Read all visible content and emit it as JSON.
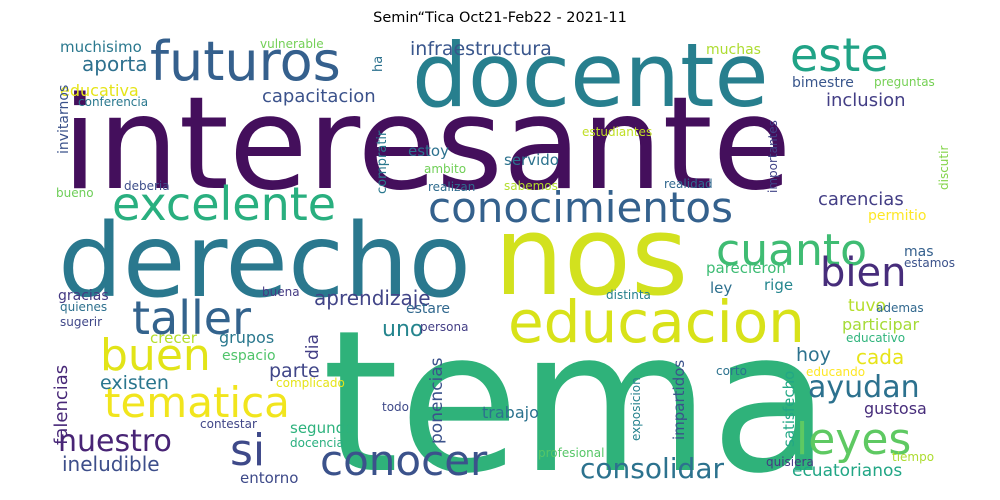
{
  "title": "Semin“Tica Oct21-Feb22 - 2021-11",
  "words": [
    {
      "text": "interesante",
      "color": "#440f5c"
    },
    {
      "text": "tema",
      "color": "#2fb27a"
    },
    {
      "text": "nos",
      "color": "#d2e11e"
    },
    {
      "text": "derecho",
      "color": "#2a788e"
    },
    {
      "text": "docente",
      "color": "#277f8e"
    },
    {
      "text": "educacion",
      "color": "#d8e219"
    },
    {
      "text": "futuros",
      "color": "#35608d"
    },
    {
      "text": "este",
      "color": "#20a386"
    },
    {
      "text": "excelente",
      "color": "#29af7f"
    },
    {
      "text": "conocimientos",
      "color": "#34618d"
    },
    {
      "text": "cuanto",
      "color": "#3fbc73"
    },
    {
      "text": "bien",
      "color": "#472d7b"
    },
    {
      "text": "taller",
      "color": "#33638d"
    },
    {
      "text": "buen",
      "color": "#e2e418"
    },
    {
      "text": "tematica",
      "color": "#f1e51d"
    },
    {
      "text": "leyes",
      "color": "#5ec962"
    },
    {
      "text": "conocer",
      "color": "#3b528b"
    },
    {
      "text": "si",
      "color": "#3e4989"
    },
    {
      "text": "nuestro",
      "color": "#482475"
    },
    {
      "text": "ayudan",
      "color": "#2c718e"
    },
    {
      "text": "consolidar",
      "color": "#2c728e"
    },
    {
      "text": "aprendizaje",
      "color": "#414487"
    },
    {
      "text": "ineludible",
      "color": "#3d4e8a"
    },
    {
      "text": "infraestructura",
      "color": "#39568c"
    },
    {
      "text": "aporta",
      "color": "#2d708e"
    },
    {
      "text": "capacitacion",
      "color": "#3b528b"
    },
    {
      "text": "inclusion",
      "color": "#433e85"
    },
    {
      "text": "carencias",
      "color": "#433e85"
    },
    {
      "text": "educativa",
      "color": "#e5e419"
    },
    {
      "text": "muchisimo",
      "color": "#2a788e"
    },
    {
      "text": "uno",
      "color": "#25858e"
    },
    {
      "text": "grupos",
      "color": "#2a788e"
    },
    {
      "text": "cada",
      "color": "#e7e419"
    },
    {
      "text": "hoy",
      "color": "#2c728e"
    },
    {
      "text": "existen",
      "color": "#2a768e"
    },
    {
      "text": "parte",
      "color": "#404688"
    },
    {
      "text": "tuvo",
      "color": "#b5de2b"
    },
    {
      "text": "participar",
      "color": "#a5db36"
    },
    {
      "text": "falencias",
      "color": "#482878"
    },
    {
      "text": "ponencias",
      "color": "#3b528b"
    },
    {
      "text": "trabajo",
      "color": "#2c728e"
    },
    {
      "text": "gustosa",
      "color": "#472d7b"
    },
    {
      "text": "ecuatorianos",
      "color": "#21a685"
    },
    {
      "text": "entorno",
      "color": "#3e4a89"
    },
    {
      "text": "servido",
      "color": "#2c728e"
    },
    {
      "text": "estoy",
      "color": "#2c718e"
    },
    {
      "text": "ley",
      "color": "#2d708e"
    },
    {
      "text": "rige",
      "color": "#24868e"
    },
    {
      "text": "parecieron",
      "color": "#3dbc74"
    },
    {
      "text": "mas",
      "color": "#35608d"
    },
    {
      "text": "permitio",
      "color": "#fde725"
    },
    {
      "text": "dia",
      "color": "#433e85"
    },
    {
      "text": "espacio",
      "color": "#50c46a"
    },
    {
      "text": "crecer",
      "color": "#b5de2b"
    },
    {
      "text": "segundo",
      "color": "#2db27d"
    },
    {
      "text": "satisfecho",
      "color": "#22a785"
    },
    {
      "text": "impartidos",
      "color": "#3b528b"
    },
    {
      "text": "estare",
      "color": "#31688e"
    },
    {
      "text": "bimestre",
      "color": "#39568c"
    },
    {
      "text": "muchas",
      "color": "#addc30"
    },
    {
      "text": "invitarnos",
      "color": "#3b528b"
    },
    {
      "text": "vulnerable",
      "color": "#73d056"
    },
    {
      "text": "ha",
      "color": "#2c718e"
    },
    {
      "text": "conferencia",
      "color": "#2a788e"
    },
    {
      "text": "preguntas",
      "color": "#75d054"
    },
    {
      "text": "compratir",
      "color": "#2a788e"
    },
    {
      "text": "estudiantes",
      "color": "#c0df25"
    },
    {
      "text": "importantes",
      "color": "#404387"
    },
    {
      "text": "discutir",
      "color": "#84d44b"
    },
    {
      "text": "ambito",
      "color": "#70cf57"
    },
    {
      "text": "realizan",
      "color": "#2f6c8e"
    },
    {
      "text": "sabemos",
      "color": "#b2dd2d"
    },
    {
      "text": "realidad",
      "color": "#31678e"
    },
    {
      "text": "deberia",
      "color": "#3d4e8a"
    },
    {
      "text": "bueno",
      "color": "#6ece58"
    },
    {
      "text": "gracias",
      "color": "#443a83"
    },
    {
      "text": "quienes",
      "color": "#2d708e"
    },
    {
      "text": "sugerir",
      "color": "#3f4788"
    },
    {
      "text": "buena",
      "color": "#443a83"
    },
    {
      "text": "persona",
      "color": "#433e85"
    },
    {
      "text": "distinta",
      "color": "#26818e"
    },
    {
      "text": "estamos",
      "color": "#3b528b"
    },
    {
      "text": "ademas",
      "color": "#31688e"
    },
    {
      "text": "educativo",
      "color": "#2fb47c"
    },
    {
      "text": "complicado",
      "color": "#e5e419"
    },
    {
      "text": "educando",
      "color": "#fde725"
    },
    {
      "text": "corto",
      "color": "#2c728e"
    },
    {
      "text": "exposicion",
      "color": "#26828e"
    },
    {
      "text": "todo",
      "color": "#3e4989"
    },
    {
      "text": "contestar",
      "color": "#404688"
    },
    {
      "text": "docencia",
      "color": "#29af7f"
    },
    {
      "text": "profesional",
      "color": "#56c667"
    },
    {
      "text": "quisiera",
      "color": "#443983"
    },
    {
      "text": "tiempo",
      "color": "#addc30"
    }
  ]
}
